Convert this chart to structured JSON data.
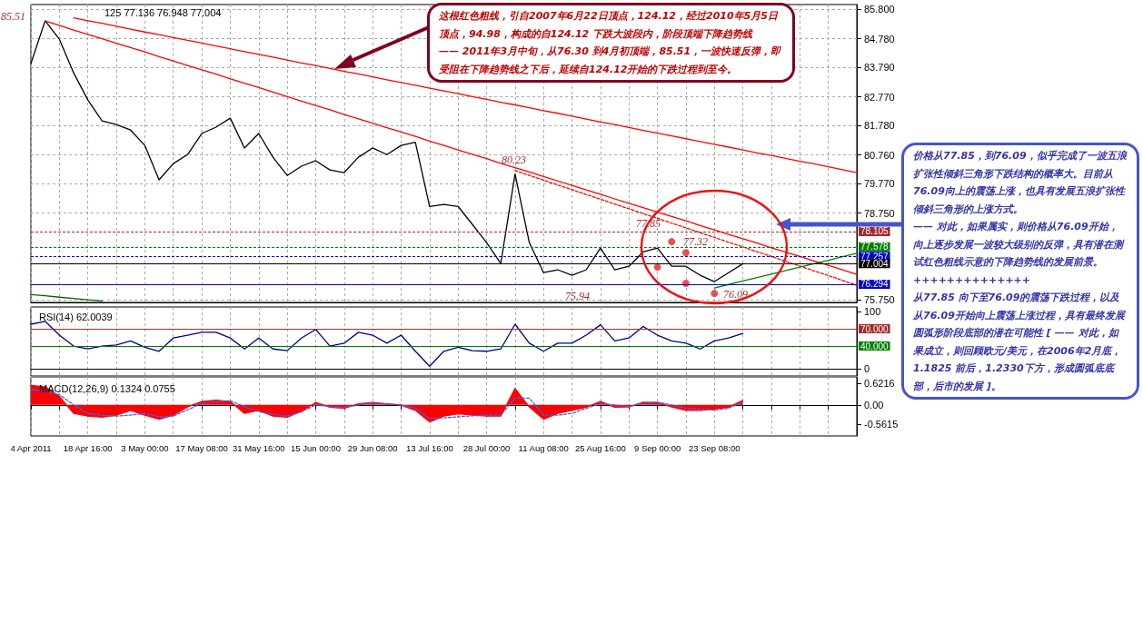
{
  "chart_data": [
    {
      "type": "line",
      "title": "125 77.136 76.948 77.004",
      "categories": [
        null,
        null,
        null,
        null,
        null,
        null,
        null,
        null,
        null,
        null,
        null,
        null,
        null,
        null,
        null,
        null,
        null,
        null,
        null,
        null,
        null,
        null,
        null,
        null,
        null,
        null,
        null,
        null,
        null,
        null,
        null,
        null,
        null,
        null,
        null,
        null,
        null,
        null,
        null,
        null,
        null,
        null,
        null,
        null,
        null,
        null,
        null,
        null,
        null,
        null,
        null,
        null,
        null,
        null,
        null,
        null,
        null,
        null,
        null
      ],
      "ylim": [
        75.66,
        85.96
      ],
      "yticks": [
        {
          "value": 85.8,
          "label": "85.800"
        },
        {
          "value": 84.78,
          "label": "84.780"
        },
        {
          "value": 83.79,
          "label": "83.790"
        },
        {
          "value": 82.77,
          "label": "82.770"
        },
        {
          "value": 81.78,
          "label": "81.780"
        },
        {
          "value": 80.76,
          "label": "80.760"
        },
        {
          "value": 79.77,
          "label": "79.770"
        },
        {
          "value": 78.75,
          "label": "78.750"
        },
        {
          "value": 75.75,
          "label": "75.750"
        }
      ],
      "grid": true,
      "tick_labels": "y",
      "marker": "none",
      "series": [
        {
          "color": "#000000",
          "values": [
            83.92,
            85.4,
            84.76,
            83.6,
            82.66,
            81.94,
            81.81,
            81.62,
            81.09,
            79.9,
            80.46,
            80.77,
            81.5,
            81.72,
            82.03,
            81.0,
            81.5,
            80.68,
            80.05,
            80.37,
            80.56,
            80.24,
            80.15,
            80.68,
            81.0,
            80.77,
            81.09,
            81.2,
            78.98,
            79.05,
            78.98,
            78.36,
            77.73,
            77.01,
            80.1,
            77.73,
            76.69,
            76.79,
            76.6,
            76.79,
            77.54,
            76.79,
            76.91,
            77.41,
            77.54,
            76.91,
            76.91,
            76.6,
            76.38,
            76.69,
            77.0,
            null,
            null,
            null,
            null,
            null,
            null,
            null,
            null
          ]
        },
        {
          "color": "#ff0000",
          "values": [
            null,
            null,
            null,
            85.5,
            85.4,
            85.31,
            85.21,
            85.11,
            85.01,
            84.92,
            84.82,
            84.72,
            84.63,
            84.53,
            84.43,
            84.33,
            84.24,
            84.14,
            84.04,
            83.94,
            83.85,
            83.75,
            83.65,
            83.56,
            83.46,
            83.36,
            83.26,
            83.17,
            83.07,
            82.97,
            82.88,
            82.78,
            82.68,
            82.58,
            82.49,
            82.39,
            82.29,
            82.2,
            82.1,
            82.0,
            81.9,
            81.81,
            81.71,
            81.61,
            81.51,
            81.42,
            81.32,
            81.22,
            81.13,
            81.03,
            80.93,
            80.83,
            80.74,
            80.64,
            80.54,
            80.45,
            80.35,
            80.25,
            80.15
          ]
        },
        {
          "color": "#ff0000",
          "values": [
            null,
            85.39,
            85.24,
            85.08,
            84.93,
            84.78,
            84.62,
            84.47,
            84.32,
            84.16,
            84.01,
            83.85,
            83.7,
            83.55,
            83.39,
            83.24,
            83.09,
            82.93,
            82.78,
            82.62,
            82.47,
            82.32,
            82.16,
            82.01,
            81.86,
            81.7,
            81.55,
            81.4,
            81.24,
            81.09,
            80.93,
            80.78,
            80.63,
            80.47,
            80.32,
            80.17,
            80.01,
            79.86,
            79.71,
            79.55,
            79.4,
            79.24,
            79.09,
            78.94,
            78.78,
            78.63,
            78.48,
            78.32,
            78.17,
            78.01,
            77.86,
            77.71,
            77.55,
            77.4,
            77.25,
            77.09,
            76.94,
            76.79,
            76.63
          ]
        },
        {
          "color": "#ff0000",
          "line_style": "dashed",
          "values": [
            null,
            null,
            null,
            null,
            null,
            null,
            null,
            null,
            null,
            null,
            null,
            null,
            null,
            null,
            null,
            null,
            null,
            null,
            null,
            null,
            null,
            null,
            null,
            null,
            null,
            null,
            null,
            null,
            null,
            null,
            null,
            null,
            null,
            null,
            80.22,
            80.05,
            79.89,
            79.72,
            79.56,
            79.39,
            79.23,
            79.06,
            78.9,
            78.73,
            78.57,
            78.4,
            78.24,
            78.07,
            77.91,
            77.74,
            77.58,
            77.41,
            77.25,
            77.08,
            76.92,
            76.75,
            76.59,
            76.42,
            76.25
          ]
        },
        {
          "color": "#008000",
          "values": [
            null,
            null,
            null,
            null,
            null,
            null,
            null,
            null,
            null,
            null,
            null,
            null,
            null,
            null,
            null,
            null,
            null,
            null,
            null,
            null,
            null,
            null,
            null,
            null,
            null,
            null,
            null,
            null,
            null,
            null,
            null,
            null,
            null,
            null,
            null,
            null,
            null,
            null,
            null,
            null,
            null,
            null,
            null,
            null,
            null,
            null,
            null,
            null,
            76.16,
            76.28,
            76.4,
            76.52,
            76.64,
            76.76,
            76.88,
            77.0,
            77.12,
            77.24,
            77.36
          ]
        },
        {
          "color": "#006400",
          "values": [
            75.93,
            75.89,
            75.84,
            75.8,
            75.75,
            75.71,
            null,
            null,
            null,
            null,
            null,
            null,
            null,
            null,
            null,
            null,
            null,
            null,
            null,
            null,
            null,
            null,
            null,
            null,
            null,
            null,
            null,
            null,
            null,
            null,
            null,
            null,
            null,
            null,
            null,
            null,
            null,
            null,
            null,
            null,
            null,
            null,
            null,
            null,
            null,
            null,
            null,
            null,
            null,
            null,
            null,
            null,
            null,
            null,
            null,
            null,
            null,
            null,
            null
          ]
        },
        {
          "type": "scatter",
          "marker": "circle",
          "color": "#ee2222",
          "values": [
            null,
            null,
            null,
            null,
            null,
            null,
            null,
            null,
            null,
            null,
            null,
            null,
            null,
            null,
            null,
            null,
            null,
            null,
            null,
            null,
            null,
            null,
            null,
            null,
            null,
            null,
            null,
            null,
            null,
            null,
            null,
            null,
            null,
            null,
            null,
            null,
            null,
            null,
            null,
            null,
            null,
            null,
            null,
            null,
            null,
            77.76,
            77.38,
            null,
            75.97,
            null,
            null,
            null,
            null,
            null,
            null,
            null,
            null,
            null,
            null
          ]
        },
        {
          "type": "scatter",
          "marker": "circle",
          "color": "#ee2222",
          "values": [
            null,
            null,
            null,
            null,
            null,
            null,
            null,
            null,
            null,
            null,
            null,
            null,
            null,
            null,
            null,
            null,
            null,
            null,
            null,
            null,
            null,
            null,
            null,
            null,
            null,
            null,
            null,
            null,
            null,
            null,
            null,
            null,
            null,
            null,
            null,
            null,
            null,
            null,
            null,
            null,
            null,
            null,
            null,
            null,
            76.88,
            null,
            76.32,
            null,
            null,
            null,
            null,
            null,
            null,
            null,
            null,
            null,
            null,
            null,
            null
          ]
        }
      ],
      "ref_lines": [
        {
          "axis": "y",
          "value": 78.105,
          "label": "78.105",
          "color": "#a52a2a",
          "line_style": "dashed"
        },
        {
          "axis": "y",
          "value": 77.578,
          "label": "77.578",
          "color": "#008000",
          "line_style": "dashed"
        },
        {
          "axis": "y",
          "value": 77.257,
          "label": "77.257",
          "color": "#0000cc",
          "line_style": "dashed"
        },
        {
          "axis": "y",
          "value": 77.004,
          "label": "77.004",
          "color": "#000000",
          "line_style": "solid"
        },
        {
          "axis": "y",
          "value": 76.294,
          "label": "76.294",
          "color": "#0000cc",
          "line_style": "solid"
        }
      ],
      "annotations": [
        "这根红色粗线，引自2007年6月22日顶点，124.12，经过2010年5月5日顶点，94.98，构成的自124.12 下跌大波段内，阶段顶端下降趋势线\n—— 2011年3月中旬，从76.30 到4月初顶端，85.51，一波快速反弹，即受阻在下降趋势线之下后，延续自124.12开始的下跌过程到至今。",
        "价格从77.85，到76.09，似乎完成了一波五浪扩张性倾斜三角形下跌结构的概率大。目前从76.09向上的震荡上涨，也具有发展五浪扩张性倾斜三角形的上涨方式。\n—— 对此，如果属实，则价格从76.09开始，向上逐步发展一波较大级别的反弹，具有潜在测试红色粗线示意的下降趋势线的发展前景。\n++++++++++++++\n从77.85 向下至76.09的震荡下跌过程，以及从76.09开始向上震荡上涨过程，具有最终发展圆弧形阶段底部的潜在可能性 [ —— 对此，如果成立，则回顾欧元/美元，在2006年2月底，1.1825 前后，1.2330下方，形成圆弧底底部，后市的发展 ]。",
        "85.51",
        "80.23",
        "75.94",
        "77.85",
        "77.32",
        "76.09"
      ]
    },
    {
      "type": "line",
      "title": "RSI(14) 62.0039",
      "categories": [
        null,
        null,
        null,
        null,
        null,
        null,
        null,
        null,
        null,
        null,
        null,
        null,
        null,
        null,
        null,
        null,
        null,
        null,
        null,
        null,
        null,
        null,
        null,
        null,
        null,
        null,
        null,
        null,
        null,
        null,
        null,
        null,
        null,
        null,
        null,
        null,
        null,
        null,
        null,
        null,
        null,
        null,
        null,
        null,
        null,
        null,
        null,
        null,
        null,
        null,
        null,
        null,
        null,
        null,
        null,
        null,
        null,
        null,
        null
      ],
      "ylim": [
        -12,
        108
      ],
      "yticks": [
        0,
        100
      ],
      "grid": "x",
      "tick_labels": "y",
      "marker": "none",
      "series": [
        {
          "color": "#000080",
          "values": [
            78,
            83,
            59,
            40,
            35,
            40,
            42,
            49,
            38,
            31,
            54,
            59,
            64,
            64,
            54,
            35,
            54,
            35,
            32,
            54,
            69,
            40,
            45,
            64,
            59,
            45,
            59,
            31,
            5,
            31,
            38,
            32,
            31,
            35,
            78,
            45,
            31,
            45,
            45,
            59,
            77,
            49,
            54,
            74,
            59,
            49,
            45,
            35,
            49,
            54,
            62,
            null,
            null,
            null,
            null,
            null,
            null,
            null,
            null
          ]
        }
      ],
      "ref_lines": [
        {
          "axis": "y",
          "value": 70,
          "label": "70.000",
          "color": "#a52a2a",
          "line_style": "solid"
        },
        {
          "axis": "y",
          "value": 40,
          "label": "40.000",
          "color": "#008000",
          "line_style": "solid"
        }
      ]
    },
    {
      "type": "area",
      "title": "MACD(12,26,9) 0.1324 0.0755",
      "categories": [
        "4 Apr 2011",
        null,
        null,
        null,
        "18 Apr 16:00",
        null,
        null,
        null,
        "3 May 00:00",
        null,
        null,
        null,
        "17 May 08:00",
        null,
        null,
        null,
        "31 May 16:00",
        null,
        null,
        null,
        "15 Jun 00:00",
        null,
        null,
        null,
        "29 Jun 08:00",
        null,
        null,
        null,
        "13 Jul 16:00",
        null,
        null,
        null,
        "28 Jul 00:00",
        null,
        null,
        null,
        "11 Aug 08:00",
        null,
        null,
        null,
        "25 Aug 16:00",
        null,
        null,
        null,
        "9 Sep 00:00",
        null,
        null,
        null,
        "23 Sep 08:00",
        null,
        null,
        null,
        null,
        null,
        null,
        null,
        null,
        null,
        null
      ],
      "ylim": [
        -0.91,
        0.82
      ],
      "yticks": [
        0.6216,
        {
          "value": 0,
          "label": "0.00"
        },
        -0.5615
      ],
      "grid": "x",
      "marker": "none",
      "series": [
        {
          "color": "#ff0000",
          "values": [
            0.57,
            0.53,
            0.25,
            -0.25,
            -0.33,
            -0.36,
            -0.3,
            -0.16,
            -0.3,
            -0.42,
            -0.3,
            -0.06,
            0.1,
            0.14,
            0.1,
            -0.25,
            -0.16,
            -0.33,
            -0.36,
            -0.19,
            0.07,
            -0.07,
            -0.1,
            0.03,
            0.07,
            0.03,
            -0.01,
            -0.16,
            -0.5,
            -0.33,
            -0.26,
            -0.3,
            -0.33,
            -0.33,
            0.48,
            -0.06,
            -0.42,
            -0.25,
            -0.16,
            -0.07,
            0.1,
            -0.07,
            -0.06,
            0.08,
            0.07,
            -0.06,
            -0.16,
            -0.16,
            -0.12,
            -0.07,
            0.13,
            null,
            null,
            null,
            null,
            null,
            null,
            null,
            null
          ]
        },
        {
          "type": "line",
          "color": "#3366ff",
          "line_style": "dashed",
          "values": [
            0.45,
            0.4,
            0.3,
            0.0,
            -0.25,
            -0.3,
            -0.33,
            -0.3,
            -0.25,
            -0.35,
            -0.33,
            -0.15,
            0.05,
            0.1,
            0.12,
            -0.05,
            -0.2,
            -0.28,
            -0.33,
            -0.2,
            0.0,
            -0.05,
            -0.08,
            0.0,
            0.05,
            0.03,
            0.0,
            -0.1,
            -0.4,
            -0.38,
            -0.35,
            -0.32,
            -0.3,
            -0.3,
            0.2,
            0.2,
            -0.3,
            -0.3,
            -0.25,
            -0.1,
            0.03,
            0.0,
            -0.05,
            0.05,
            0.08,
            0.0,
            -0.1,
            -0.13,
            -0.15,
            -0.1,
            0.08,
            null,
            null,
            null,
            null,
            null,
            null,
            null,
            null
          ]
        }
      ]
    }
  ]
}
